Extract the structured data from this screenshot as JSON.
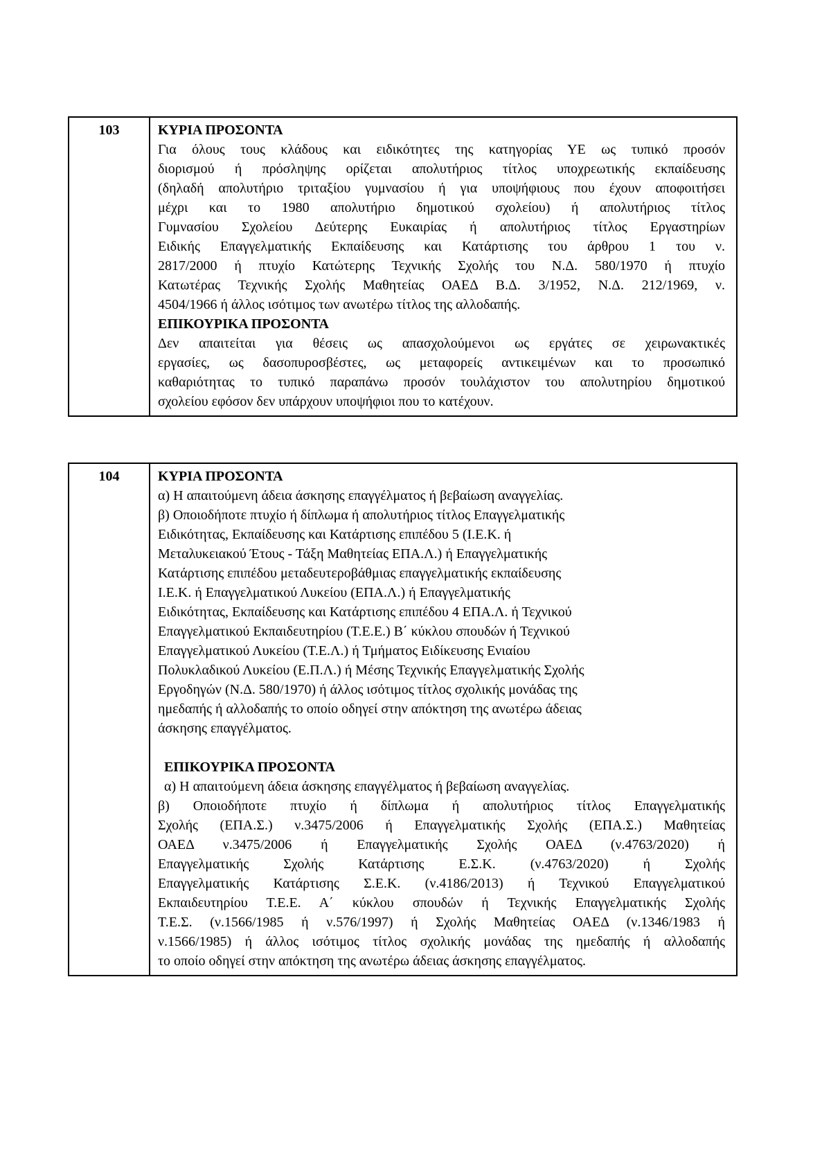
{
  "page": {
    "background_color": "#ffffff",
    "text_color": "#000000",
    "border_color": "#000000"
  },
  "tables": [
    {
      "number": "103",
      "lines": [
        {
          "text": "ΚΥΡΙΑ ΠΡΟΣΟΝΤΑ",
          "heading": true
        },
        {
          "text": "Για όλους τους κλάδους και ειδικότητες της κατηγορίας ΥΕ ως τυπικό προσόν",
          "justified": true
        },
        {
          "text": "διορισμού ή πρόσληψης ορίζεται απολυτήριος τίτλος υποχρεωτικής εκπαίδευσης",
          "justified": true
        },
        {
          "text": "(δηλαδή απολυτήριο τριταξίου γυμνασίου ή για υποψήφιους που έχουν αποφοιτήσει",
          "justified": true
        },
        {
          "text": "μέχρι και το 1980 απολυτήριο δημοτικού σχολείου) ή απολυτήριος τίτλος",
          "justified": true
        },
        {
          "text": "Γυμνασίου Σχολείου Δεύτερης Ευκαιρίας ή απολυτήριος τίτλος Εργαστηρίων",
          "justified": true
        },
        {
          "text": "Ειδικής Επαγγελματικής Εκπαίδευσης και Κατάρτισης του άρθρου 1 του ν.",
          "justified": true
        },
        {
          "text": "2817/2000 ή πτυχίο Κατώτερης Τεχνικής Σχολής του Ν.Δ. 580/1970 ή πτυχίο",
          "justified": true
        },
        {
          "text": "Κατωτέρας Τεχνικής Σχολής Μαθητείας ΟΑΕΔ Β.Δ. 3/1952, Ν.Δ. 212/1969, ν.",
          "justified": true
        },
        {
          "text": "4504/1966 ή άλλος ισότιμος των ανωτέρω τίτλος της αλλοδαπής."
        },
        {
          "text": "ΕΠΙΚΟΥΡΙΚΑ ΠΡΟΣΟΝΤΑ",
          "heading": true
        },
        {
          "text": "Δεν απαιτείται για θέσεις ως απασχολούμενοι ως εργάτες σε χειρωνακτικές",
          "justified": true
        },
        {
          "text": "εργασίες, ως δασοπυροσβέστες, ως μεταφορείς αντικειμένων και το προσωπικό",
          "justified": true
        },
        {
          "text": "καθαριότητας το τυπικό παραπάνω προσόν τουλάχιστον του απολυτηρίου δημοτικού",
          "justified": true
        },
        {
          "text": "σχολείου εφόσον δεν υπάρχουν υποψήφιοι που το κατέχουν."
        }
      ]
    },
    {
      "number": "104",
      "lines": [
        {
          "text": "ΚΥΡΙΑ ΠΡΟΣΟΝΤΑ",
          "heading": true
        },
        {
          "text": "α) Η απαιτούμενη άδεια άσκησης επαγγέλματος ή βεβαίωση αναγγελίας."
        },
        {
          "text": "β) Οποιοδήποτε πτυχίο ή δίπλωμα ή απολυτήριος τίτλος Επαγγελματικής"
        },
        {
          "text": "Ειδικότητας, Εκπαίδευσης και Κατάρτισης επιπέδου 5 (Ι.Ε.Κ. ή"
        },
        {
          "text": "Μεταλυκειακού Έτους - Τάξη Μαθητείας ΕΠΑ.Λ.) ή Επαγγελματικής"
        },
        {
          "text": "Κατάρτισης επιπέδου μεταδευτεροβάθμιας επαγγελματικής εκπαίδευσης"
        },
        {
          "text": "Ι.Ε.Κ. ή Επαγγελματικού Λυκείου (ΕΠΑ.Λ.) ή Επαγγελματικής"
        },
        {
          "text": "Ειδικότητας, Εκπαίδευσης και Κατάρτισης επιπέδου 4 ΕΠΑ.Λ. ή Τεχνικού"
        },
        {
          "text": "Επαγγελματικού Εκπαιδευτηρίου (Τ.Ε.Ε.) Β΄ κύκλου σπουδών ή Τεχνικού"
        },
        {
          "text": "Επαγγελματικού Λυκείου (Τ.Ε.Λ.) ή Τμήματος Ειδίκευσης Ενιαίου"
        },
        {
          "text": "Πολυκλαδικού Λυκείου (Ε.Π.Λ.) ή Μέσης Τεχνικής Επαγγελματικής Σχολής"
        },
        {
          "text": "Εργοδηγών (Ν.Δ. 580/1970) ή άλλος ισότιμος τίτλος σχολικής μονάδας της"
        },
        {
          "text": "ημεδαπής ή αλλοδαπής το οποίο οδηγεί στην απόκτηση της ανωτέρω άδειας"
        },
        {
          "text": "άσκησης επαγγέλματος."
        },
        {
          "text": "",
          "blank": true
        },
        {
          "text": "ΕΠΙΚΟΥΡΙΚΑ ΠΡΟΣΟΝΤΑ",
          "heading": true,
          "indented": true
        },
        {
          "text": "α) Η απαιτούμενη άδεια άσκησης επαγγέλματος ή βεβαίωση αναγγελίας.",
          "indented": true
        },
        {
          "text": "β) Οποιοδήποτε πτυχίο ή δίπλωμα ή απολυτήριος τίτλος Επαγγελματικής",
          "justified": true
        },
        {
          "text": "Σχολής (ΕΠΑ.Σ.) ν.3475/2006 ή Επαγγελματικής Σχολής (ΕΠΑ.Σ.) Μαθητείας",
          "justified": true
        },
        {
          "text": "ΟΑΕΔ ν.3475/2006 ή Επαγγελματικής Σχολής ΟΑΕΔ (ν.4763/2020) ή",
          "justified": true
        },
        {
          "text": "Επαγγελματικής Σχολής Κατάρτισης Ε.Σ.Κ. (ν.4763/2020) ή Σχολής",
          "justified": true
        },
        {
          "text": "Επαγγελματικής Κατάρτισης Σ.Ε.Κ. (ν.4186/2013) ή Τεχνικού Επαγγελματικού",
          "justified": true
        },
        {
          "text": "Εκπαιδευτηρίου Τ.Ε.Ε. Α΄ κύκλου σπουδών ή Τεχνικής Επαγγελματικής Σχολής",
          "justified": true
        },
        {
          "text": "Τ.Ε.Σ. (ν.1566/1985 ή ν.576/1997) ή Σχολής Μαθητείας ΟΑΕΔ (ν.1346/1983 ή",
          "justified": true
        },
        {
          "text": "ν.1566/1985) ή άλλος ισότιμος τίτλος σχολικής μονάδας της ημεδαπής ή αλλοδαπής",
          "justified": true
        },
        {
          "text": "το οποίο οδηγεί στην απόκτηση της ανωτέρω άδειας άσκησης επαγγέλματος."
        }
      ]
    }
  ]
}
